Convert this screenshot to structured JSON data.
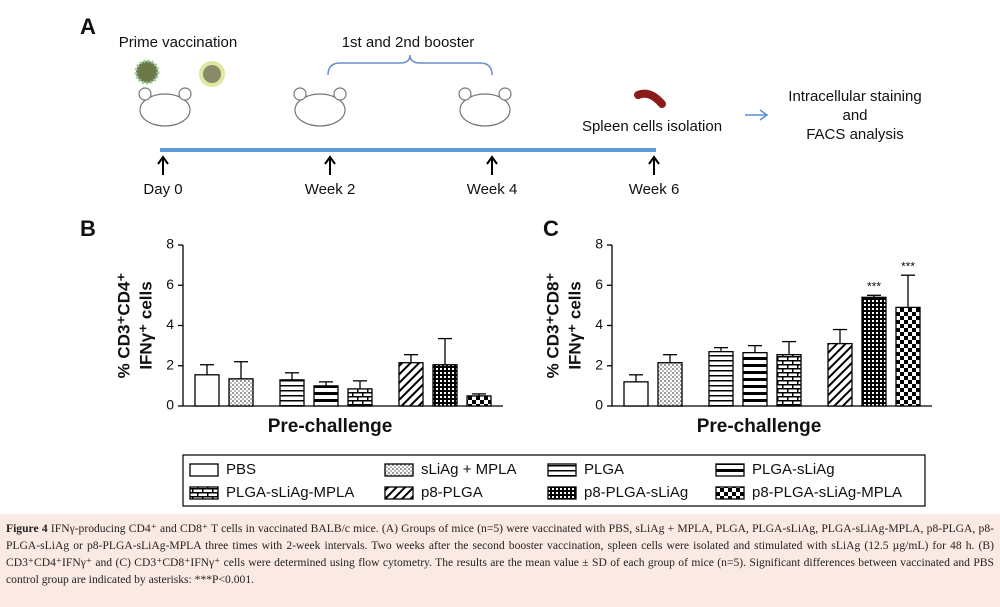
{
  "panel_a": {
    "letter": "A",
    "prime": "Prime vaccination",
    "booster": "1st and 2nd booster",
    "spleen": "Spleen cells isolation",
    "timepoints": [
      "Day 0",
      "Week 2",
      "Week 4",
      "Week 6"
    ],
    "analysis": [
      "Intracellular staining",
      "and",
      "FACS analysis"
    ]
  },
  "legend": [
    "PBS",
    "sLiAg + MPLA",
    "PLGA",
    "PLGA-sLiAg",
    "PLGA-sLiAg-MPLA",
    "p8-PLGA",
    "p8-PLGA-sLiAg",
    "p8-PLGA-sLiAg-MPLA"
  ],
  "chart_data": [
    {
      "type": "bar",
      "letter": "B",
      "ylabel": [
        "% CD3⁺CD4⁺",
        "IFNγ⁺ cells"
      ],
      "xlabel": "Pre-challenge",
      "values": [
        1.55,
        1.35,
        1.3,
        1.0,
        0.85,
        2.15,
        2.05,
        0.5
      ],
      "errors": [
        0.5,
        0.85,
        0.35,
        0.2,
        0.4,
        0.4,
        1.3,
        0.1
      ],
      "ylim": [
        0,
        8
      ],
      "yticks": [
        0,
        2,
        4,
        6,
        8
      ],
      "annotations": []
    },
    {
      "type": "bar",
      "letter": "C",
      "ylabel": [
        "% CD3⁺CD8⁺",
        "IFNγ⁺ cells"
      ],
      "xlabel": "Pre-challenge",
      "values": [
        1.2,
        2.15,
        2.7,
        2.65,
        2.55,
        3.1,
        5.4,
        4.9
      ],
      "errors": [
        0.35,
        0.4,
        0.2,
        0.35,
        0.65,
        0.7,
        0.1,
        1.6
      ],
      "ylim": [
        0,
        8
      ],
      "yticks": [
        0,
        2,
        4,
        6,
        8
      ],
      "annotations": [
        {
          "category": "p8-PLGA-sLiAg",
          "text": "***"
        },
        {
          "category": "p8-PLGA-sLiAg-MPLA",
          "text": "***"
        }
      ]
    }
  ],
  "caption": {
    "label": "Figure 4",
    "text": "IFNγ-producing CD4⁺ and CD8⁺ T cells in vaccinated BALB/c mice. (A) Groups of mice (n=5) were vaccinated with PBS, sLiAg + MPLA, PLGA, PLGA-sLiAg, PLGA-sLiAg-MPLA, p8-PLGA, p8-PLGA-sLiAg or p8-PLGA-sLiAg-MPLA three times with 2-week intervals. Two weeks after the second booster vaccination, spleen cells were isolated and stimulated with sLiAg (12.5 µg/mL) for 48 h. (B) CD3⁺CD4⁺IFNγ⁺ and (C) CD3⁺CD8⁺IFNγ⁺ cells were determined using flow cytometry. The results are the mean value ± SD of each group of mice (n=5). Significant differences between vaccinated and PBS control group are indicated by asterisks: ***P<0.001."
  }
}
